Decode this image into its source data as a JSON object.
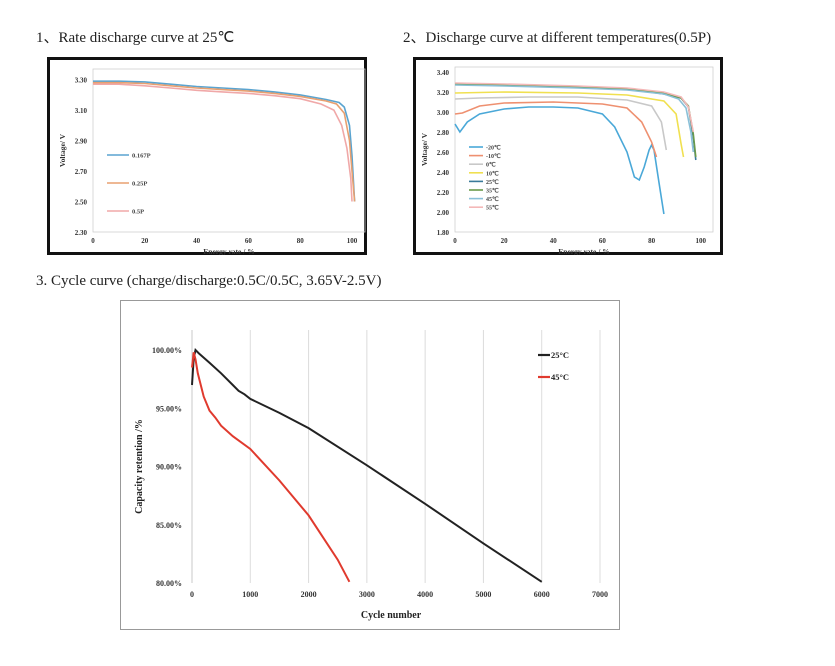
{
  "headings": {
    "h1": "1、Rate discharge curve at 25℃",
    "h2": "2、Discharge curve at different temperatures(0.5P)",
    "h3": "3. Cycle curve (charge/discharge:0.5C/0.5C, 3.65V-2.5V)"
  },
  "chart_data": [
    {
      "type": "line",
      "title": "1、Rate discharge curve at 25℃",
      "xlabel": "Energy rate / %",
      "ylabel": "Voltage/ V",
      "xlim": [
        0,
        105
      ],
      "ylim": [
        2.3,
        3.37
      ],
      "xticks": [
        "0",
        "20",
        "40",
        "60",
        "80",
        "100"
      ],
      "yticks": [
        "2.30",
        "2.50",
        "2.70",
        "2.90",
        "3.10",
        "3.30"
      ],
      "legend_placement": "left-bottom",
      "grid": false,
      "series": [
        {
          "name": "0.167P",
          "color": "#5aa4d0",
          "points": [
            [
              0,
              3.29
            ],
            [
              10,
              3.29
            ],
            [
              20,
              3.285
            ],
            [
              30,
              3.27
            ],
            [
              40,
              3.255
            ],
            [
              50,
              3.245
            ],
            [
              60,
              3.235
            ],
            [
              70,
              3.22
            ],
            [
              80,
              3.2
            ],
            [
              90,
              3.17
            ],
            [
              95,
              3.15
            ],
            [
              97,
              3.12
            ],
            [
              99,
              3.0
            ],
            [
              100,
              2.8
            ],
            [
              101,
              2.5
            ]
          ]
        },
        {
          "name": "0.25P",
          "color": "#e8a070",
          "points": [
            [
              0,
              3.28
            ],
            [
              10,
              3.28
            ],
            [
              20,
              3.275
            ],
            [
              30,
              3.26
            ],
            [
              40,
              3.245
            ],
            [
              50,
              3.235
            ],
            [
              60,
              3.225
            ],
            [
              70,
              3.21
            ],
            [
              80,
              3.19
            ],
            [
              90,
              3.16
            ],
            [
              94,
              3.14
            ],
            [
              97,
              3.08
            ],
            [
              99,
              2.9
            ],
            [
              100,
              2.7
            ],
            [
              101,
              2.5
            ]
          ]
        },
        {
          "name": "0.5P",
          "color": "#f0a8a8",
          "points": [
            [
              0,
              3.27
            ],
            [
              10,
              3.27
            ],
            [
              20,
              3.26
            ],
            [
              30,
              3.245
            ],
            [
              40,
              3.23
            ],
            [
              50,
              3.22
            ],
            [
              60,
              3.21
            ],
            [
              70,
              3.195
            ],
            [
              80,
              3.175
            ],
            [
              88,
              3.14
            ],
            [
              93,
              3.1
            ],
            [
              96,
              3.0
            ],
            [
              98,
              2.85
            ],
            [
              99.5,
              2.65
            ],
            [
              100,
              2.5
            ]
          ]
        }
      ]
    },
    {
      "type": "line",
      "title": "2、Discharge curve at different temperatures(0.5P)",
      "xlabel": "Energy rate / %",
      "ylabel": "Voltage/ V",
      "xlim": [
        0,
        105
      ],
      "ylim": [
        1.8,
        3.45
      ],
      "xticks": [
        "0",
        "20",
        "40",
        "60",
        "80",
        "100"
      ],
      "yticks": [
        "1.80",
        "2.00",
        "2.20",
        "2.40",
        "2.60",
        "2.80",
        "3.00",
        "3.20",
        "3.40"
      ],
      "legend_placement": "left-bottom",
      "grid": false,
      "series": [
        {
          "name": "-20℃",
          "color": "#4aa8d8",
          "points": [
            [
              0,
              2.88
            ],
            [
              2,
              2.8
            ],
            [
              5,
              2.9
            ],
            [
              10,
              2.98
            ],
            [
              20,
              3.03
            ],
            [
              30,
              3.05
            ],
            [
              40,
              3.05
            ],
            [
              50,
              3.04
            ],
            [
              60,
              2.98
            ],
            [
              65,
              2.85
            ],
            [
              70,
              2.6
            ],
            [
              73,
              2.35
            ],
            [
              75,
              2.32
            ],
            [
              77,
              2.45
            ],
            [
              79,
              2.62
            ],
            [
              80,
              2.67
            ],
            [
              81,
              2.62
            ],
            [
              83,
              2.3
            ],
            [
              85,
              1.98
            ]
          ]
        },
        {
          "name": "-10℃",
          "color": "#ee9070",
          "points": [
            [
              0,
              2.98
            ],
            [
              3,
              2.99
            ],
            [
              10,
              3.06
            ],
            [
              20,
              3.09
            ],
            [
              40,
              3.1
            ],
            [
              60,
              3.08
            ],
            [
              70,
              3.04
            ],
            [
              76,
              2.9
            ],
            [
              80,
              2.7
            ],
            [
              82,
              2.55
            ]
          ]
        },
        {
          "name": "0℃",
          "color": "#c8c8c8",
          "points": [
            [
              0,
              3.13
            ],
            [
              10,
              3.14
            ],
            [
              30,
              3.15
            ],
            [
              50,
              3.15
            ],
            [
              70,
              3.12
            ],
            [
              80,
              3.06
            ],
            [
              84,
              2.9
            ],
            [
              86,
              2.62
            ]
          ]
        },
        {
          "name": "10℃",
          "color": "#f0e050",
          "points": [
            [
              0,
              3.19
            ],
            [
              20,
              3.2
            ],
            [
              50,
              3.19
            ],
            [
              70,
              3.17
            ],
            [
              85,
              3.11
            ],
            [
              90,
              2.98
            ],
            [
              92,
              2.68
            ],
            [
              93,
              2.55
            ]
          ]
        },
        {
          "name": "25℃",
          "color": "#3a7a9a",
          "points": [
            [
              0,
              3.28
            ],
            [
              20,
              3.27
            ],
            [
              50,
              3.25
            ],
            [
              70,
              3.23
            ],
            [
              85,
              3.18
            ],
            [
              92,
              3.14
            ],
            [
              95,
              3.05
            ],
            [
              97,
              2.75
            ],
            [
              98,
              2.52
            ]
          ]
        },
        {
          "name": "35℃",
          "color": "#6a9a4a",
          "points": [
            [
              0,
              3.28
            ],
            [
              20,
              3.27
            ],
            [
              50,
              3.25
            ],
            [
              70,
              3.23
            ],
            [
              85,
              3.19
            ],
            [
              92,
              3.14
            ],
            [
              95,
              3.06
            ],
            [
              97,
              2.78
            ],
            [
              98,
              2.55
            ]
          ]
        },
        {
          "name": "45℃",
          "color": "#8ac0d8",
          "points": [
            [
              0,
              3.27
            ],
            [
              20,
              3.26
            ],
            [
              50,
              3.24
            ],
            [
              70,
              3.22
            ],
            [
              85,
              3.18
            ],
            [
              91,
              3.13
            ],
            [
              94,
              3.04
            ],
            [
              96,
              2.8
            ],
            [
              97,
              2.6
            ]
          ]
        },
        {
          "name": "55℃",
          "color": "#f4b8b8",
          "points": [
            [
              0,
              3.29
            ],
            [
              20,
              3.28
            ],
            [
              50,
              3.26
            ],
            [
              70,
              3.24
            ],
            [
              85,
              3.2
            ],
            [
              92,
              3.15
            ],
            [
              95,
              3.05
            ],
            [
              97,
              2.8
            ]
          ]
        }
      ]
    },
    {
      "type": "line",
      "title": "3. Cycle curve (charge/discharge:0.5C/0.5C, 3.65V-2.5V)",
      "xlabel": "Cycle number",
      "ylabel": "Capacity retention /%",
      "xlim": [
        0,
        7000
      ],
      "ylim": [
        80,
        100
      ],
      "xticks": [
        "0",
        "1000",
        "2000",
        "3000",
        "4000",
        "5000",
        "6000",
        "7000"
      ],
      "yticks": [
        "80.00%",
        "85.00%",
        "90.00%",
        "95.00%",
        "100.00%"
      ],
      "legend_placement": "top-right",
      "grid": "vertical",
      "series": [
        {
          "name": "25°C",
          "color": "#222222",
          "points": [
            [
              0,
              97.0
            ],
            [
              30,
              99.3
            ],
            [
              60,
              100.0
            ],
            [
              120,
              99.7
            ],
            [
              300,
              98.9
            ],
            [
              500,
              98.0
            ],
            [
              700,
              97.0
            ],
            [
              800,
              96.5
            ],
            [
              900,
              96.2
            ],
            [
              1000,
              95.8
            ],
            [
              1500,
              94.6
            ],
            [
              2000,
              93.3
            ],
            [
              3000,
              90.1
            ],
            [
              4000,
              86.8
            ],
            [
              5000,
              83.4
            ],
            [
              6000,
              80.1
            ]
          ]
        },
        {
          "name": "45°C",
          "color": "#e03a2e",
          "points": [
            [
              0,
              98.5
            ],
            [
              30,
              99.8
            ],
            [
              60,
              99.2
            ],
            [
              100,
              98.0
            ],
            [
              200,
              96.0
            ],
            [
              300,
              94.8
            ],
            [
              400,
              94.2
            ],
            [
              500,
              93.5
            ],
            [
              700,
              92.6
            ],
            [
              1000,
              91.5
            ],
            [
              1500,
              88.8
            ],
            [
              2000,
              85.8
            ],
            [
              2500,
              82.0
            ],
            [
              2700,
              80.1
            ]
          ]
        }
      ]
    }
  ]
}
